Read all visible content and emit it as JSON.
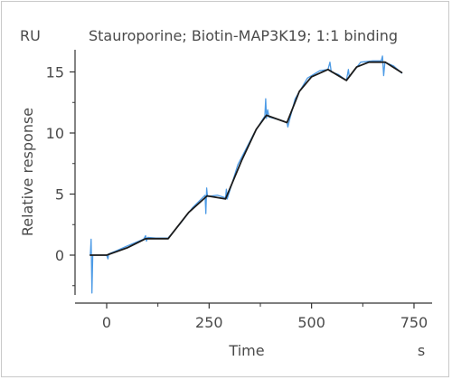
{
  "chart_data": {
    "type": "line",
    "title": "Stauroporine; Biotin-MAP3K19; 1:1 binding",
    "y_unit": "RU",
    "xlabel": "Time",
    "x_unit": "s",
    "ylabel": "Relative response",
    "xlim": [
      -55,
      730
    ],
    "ylim": [
      -3.2,
      17
    ],
    "x_ticks": [
      0,
      250,
      500,
      750
    ],
    "y_ticks": [
      0,
      5,
      10,
      15
    ],
    "grid": false,
    "series": [
      {
        "role": "measured",
        "color": "#4d9be6",
        "points": [
          [
            -40,
            0.0
          ],
          [
            -38,
            1.3
          ],
          [
            -36,
            -3.1
          ],
          [
            -34,
            0.0
          ],
          [
            0,
            0.0
          ],
          [
            3,
            -0.3
          ],
          [
            5,
            0.1
          ],
          [
            20,
            0.3
          ],
          [
            50,
            0.75
          ],
          [
            90,
            1.3
          ],
          [
            95,
            1.6
          ],
          [
            97,
            1.15
          ],
          [
            100,
            1.45
          ],
          [
            120,
            1.4
          ],
          [
            150,
            1.4
          ],
          [
            180,
            2.6
          ],
          [
            210,
            3.9
          ],
          [
            240,
            4.9
          ],
          [
            242,
            3.4
          ],
          [
            244,
            5.5
          ],
          [
            246,
            4.8
          ],
          [
            270,
            4.9
          ],
          [
            290,
            4.7
          ],
          [
            292,
            5.4
          ],
          [
            294,
            4.6
          ],
          [
            320,
            7.4
          ],
          [
            360,
            10.0
          ],
          [
            386,
            11.4
          ],
          [
            388,
            12.8
          ],
          [
            390,
            11.2
          ],
          [
            393,
            11.9
          ],
          [
            396,
            11.3
          ],
          [
            420,
            11.1
          ],
          [
            440,
            10.85
          ],
          [
            442,
            10.5
          ],
          [
            445,
            10.9
          ],
          [
            460,
            12.8
          ],
          [
            490,
            14.5
          ],
          [
            520,
            15.1
          ],
          [
            540,
            15.2
          ],
          [
            545,
            15.8
          ],
          [
            548,
            15.0
          ],
          [
            565,
            14.8
          ],
          [
            585,
            14.3
          ],
          [
            590,
            15.2
          ],
          [
            592,
            14.6
          ],
          [
            620,
            15.8
          ],
          [
            650,
            15.9
          ],
          [
            670,
            15.9
          ],
          [
            673,
            16.3
          ],
          [
            676,
            14.7
          ],
          [
            679,
            15.8
          ],
          [
            700,
            15.5
          ],
          [
            720,
            14.9
          ]
        ]
      },
      {
        "role": "fit",
        "color": "#1b1b1b",
        "points": [
          [
            -40,
            0.0
          ],
          [
            0,
            0.0
          ],
          [
            50,
            0.6
          ],
          [
            95,
            1.35
          ],
          [
            150,
            1.35
          ],
          [
            200,
            3.5
          ],
          [
            245,
            4.85
          ],
          [
            290,
            4.6
          ],
          [
            330,
            7.8
          ],
          [
            365,
            10.3
          ],
          [
            390,
            11.45
          ],
          [
            440,
            10.85
          ],
          [
            470,
            13.4
          ],
          [
            500,
            14.6
          ],
          [
            540,
            15.2
          ],
          [
            585,
            14.3
          ],
          [
            610,
            15.4
          ],
          [
            640,
            15.8
          ],
          [
            680,
            15.8
          ],
          [
            720,
            14.95
          ]
        ]
      }
    ]
  }
}
